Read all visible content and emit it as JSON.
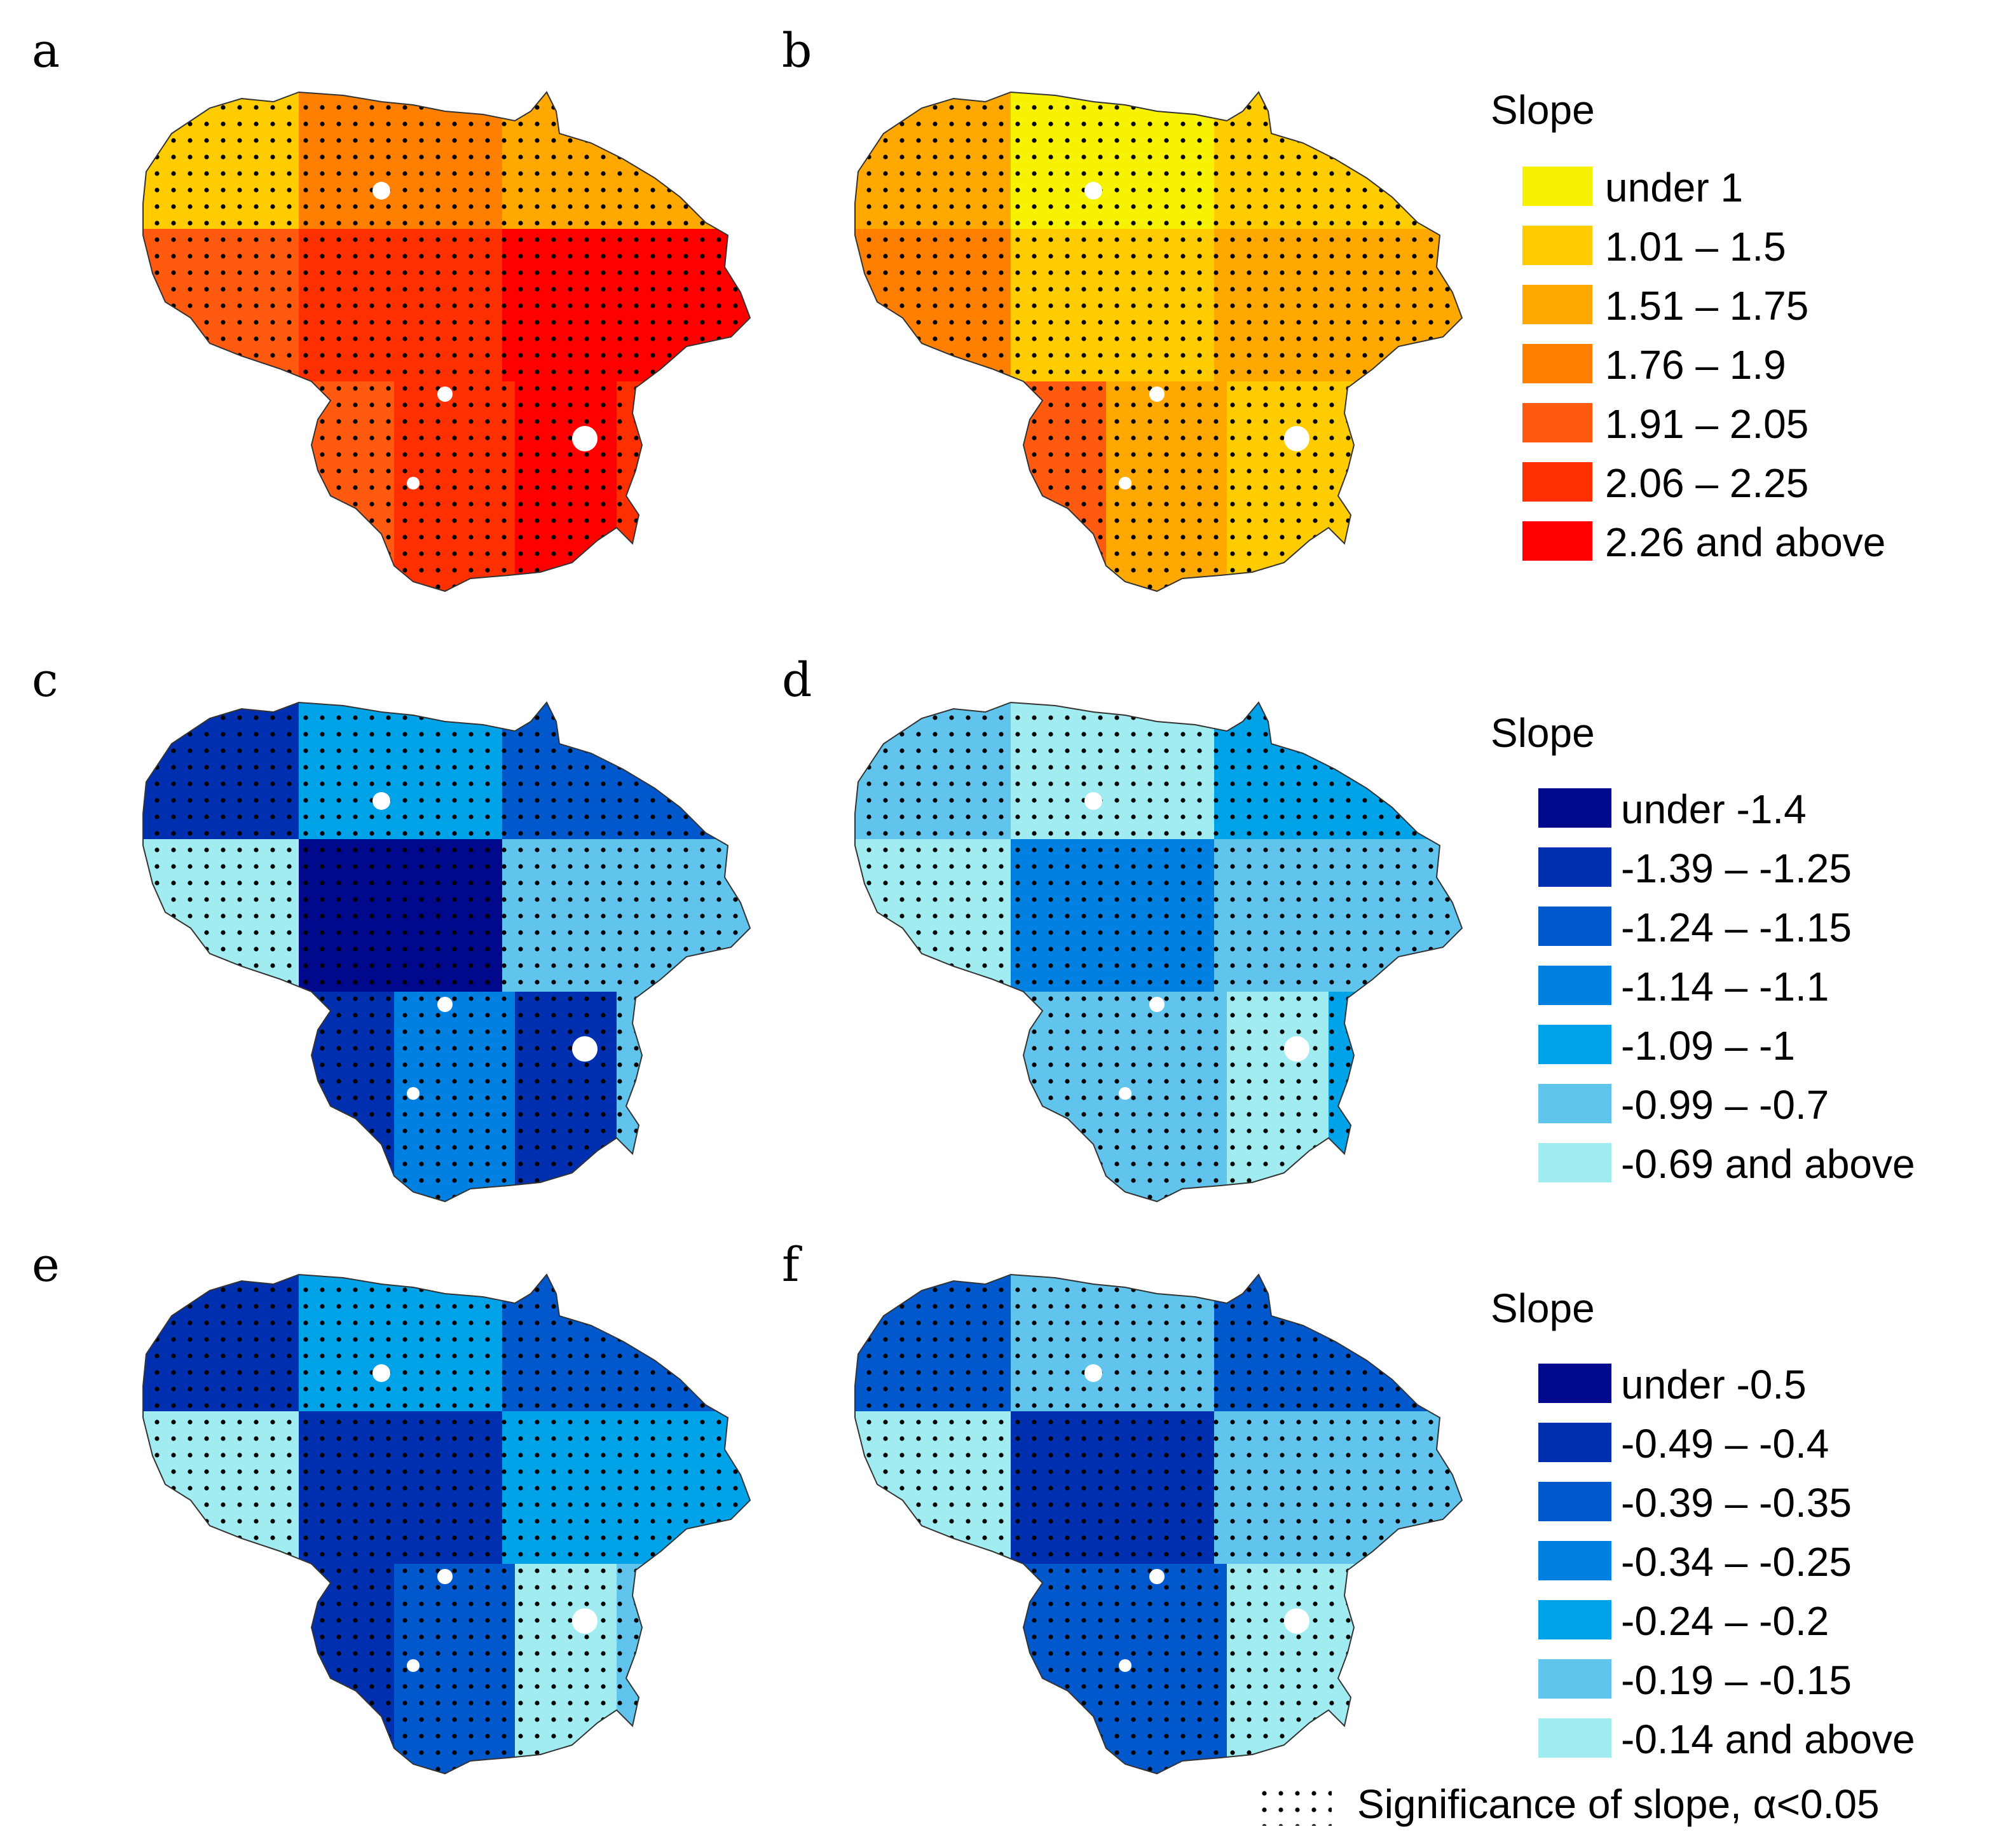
{
  "panels": [
    {
      "letter": "a",
      "group": 0,
      "regions": [
        1,
        3,
        2,
        4,
        5,
        6,
        4,
        5,
        6,
        5
      ]
    },
    {
      "letter": "b",
      "group": 0,
      "regions": [
        2,
        0,
        1,
        3,
        1,
        2,
        4,
        2,
        1,
        1
      ]
    },
    {
      "letter": "c",
      "group": 1,
      "regions": [
        1,
        4,
        2,
        6,
        0,
        5,
        1,
        3,
        1,
        5
      ]
    },
    {
      "letter": "d",
      "group": 1,
      "regions": [
        5,
        6,
        4,
        6,
        3,
        5,
        5,
        5,
        6,
        4
      ]
    },
    {
      "letter": "e",
      "group": 2,
      "regions": [
        1,
        4,
        2,
        6,
        1,
        4,
        1,
        2,
        6,
        5
      ]
    },
    {
      "letter": "f",
      "group": 2,
      "regions": [
        2,
        5,
        2,
        6,
        1,
        5,
        2,
        2,
        6,
        6
      ]
    }
  ],
  "legends": [
    {
      "title": "Slope",
      "classes": [
        {
          "label": "under 1",
          "color": "#F7F200"
        },
        {
          "label": "1.01 – 1.5",
          "color": "#FFCC00"
        },
        {
          "label": "1.51 – 1.75",
          "color": "#FFA800"
        },
        {
          "label": "1.76 – 1.9",
          "color": "#FF8000"
        },
        {
          "label": "1.91 – 2.05",
          "color": "#FF5A10"
        },
        {
          "label": "2.06 – 2.25",
          "color": "#FF3000"
        },
        {
          "label": "2.26 and above",
          "color": "#FF0000"
        }
      ]
    },
    {
      "title": "Slope",
      "classes": [
        {
          "label": "under -1.4",
          "color": "#00088C"
        },
        {
          "label": "-1.39 – -1.25",
          "color": "#0030B0"
        },
        {
          "label": "-1.24 – -1.15",
          "color": "#0058CC"
        },
        {
          "label": "-1.14 – -1.1",
          "color": "#0080E0"
        },
        {
          "label": "-1.09 – -1",
          "color": "#00A2E8"
        },
        {
          "label": "-0.99 – -0.7",
          "color": "#60C4EC"
        },
        {
          "label": "-0.69 and above",
          "color": "#A0ECF0"
        }
      ]
    },
    {
      "title": "Slope",
      "classes": [
        {
          "label": "under -0.5",
          "color": "#00088C"
        },
        {
          "label": "-0.49 – -0.4",
          "color": "#0030B0"
        },
        {
          "label": "-0.39 – -0.35",
          "color": "#0058CC"
        },
        {
          "label": "-0.34 – -0.25",
          "color": "#0080E0"
        },
        {
          "label": "-0.24 – -0.2",
          "color": "#00A2E8"
        },
        {
          "label": "-0.19 – -0.15",
          "color": "#60C4EC"
        },
        {
          "label": "-0.14 and above",
          "color": "#A0ECF0"
        }
      ]
    }
  ],
  "significance_label": "Significance of slope, α<0.05"
}
